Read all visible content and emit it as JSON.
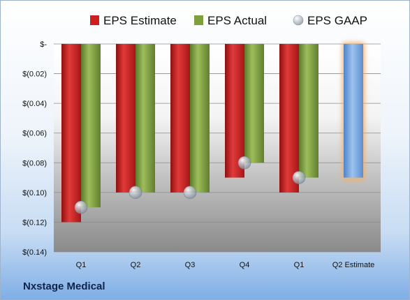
{
  "company_label": "Nxstage Medical",
  "chart_data": {
    "type": "bar",
    "title": "",
    "xlabel": "",
    "ylabel": "",
    "categories": [
      "Q1",
      "Q2",
      "Q3",
      "Q4",
      "Q1",
      "Q2 Estimate"
    ],
    "series": [
      {
        "name": "EPS Estimate",
        "color": "#cc1f1f",
        "values": [
          -0.12,
          -0.1,
          -0.1,
          -0.09,
          -0.1,
          null
        ]
      },
      {
        "name": "EPS Actual",
        "color": "#7f9f3f",
        "values": [
          -0.11,
          -0.1,
          -0.1,
          -0.08,
          -0.09,
          null
        ]
      },
      {
        "name": "EPS GAAP",
        "marker": "sphere",
        "color": "#aab4bf",
        "values": [
          -0.11,
          -0.1,
          -0.1,
          -0.08,
          -0.09,
          null
        ]
      }
    ],
    "estimate_bar": {
      "category": "Q2 Estimate",
      "value": -0.09,
      "color": "#6f9fdc",
      "glow_color": "#f0b070"
    },
    "ylim": [
      -0.14,
      0
    ],
    "yticks": [
      0,
      -0.02,
      -0.04,
      -0.06,
      -0.08,
      -0.1,
      -0.12,
      -0.14
    ],
    "ytick_labels": [
      "$-",
      "$(0.02)",
      "$(0.04)",
      "$(0.06)",
      "$(0.08)",
      "$(0.10)",
      "$(0.12)",
      "$(0.14)"
    ],
    "grid": true,
    "legend": "top"
  }
}
